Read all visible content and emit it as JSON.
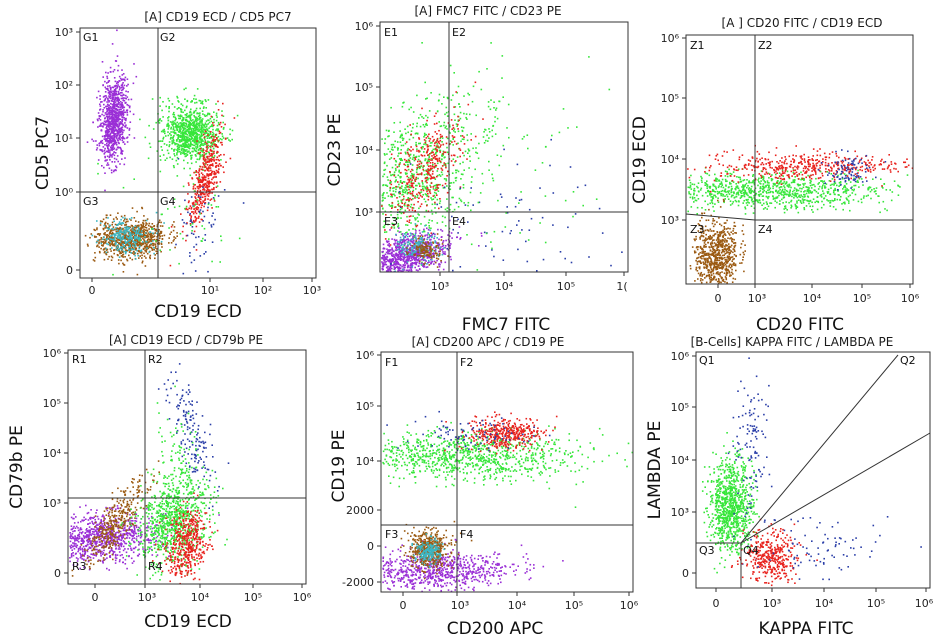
{
  "colors": {
    "purple": "#9a2fd6",
    "green": "#37e63b",
    "red": "#e8231e",
    "blue": "#2b3fa8",
    "brown": "#9b5a12",
    "cyan": "#3cb6c2",
    "gate": "#333333"
  },
  "chart_data": [
    {
      "type": "scatter",
      "title": "[A] CD19 ECD  /  CD5 PC7",
      "xlabel": "CD19 ECD",
      "ylabel": "CD5 PC7",
      "x_ticks": [
        "0",
        "10¹",
        "10²",
        "10³"
      ],
      "y_ticks": [
        "0",
        "10⁰",
        "10¹",
        "10²",
        "10³"
      ],
      "quadrants": [
        "G1",
        "G2",
        "G3",
        "G4"
      ],
      "gate": {
        "x": "10⁰",
        "y": "10⁰"
      },
      "populations": [
        {
          "color": "purple",
          "x": "~0.7",
          "y": "~30",
          "share": "large"
        },
        {
          "color": "green",
          "x": "~3",
          "y": "~12",
          "share": "large"
        },
        {
          "color": "red",
          "x": "~5",
          "y": "~1–3",
          "share": "medium"
        },
        {
          "color": "brown",
          "x": "~0.5",
          "y": "~0",
          "share": "large"
        },
        {
          "color": "cyan",
          "x": "~0.5",
          "y": "~0",
          "share": "small"
        },
        {
          "color": "blue",
          "x": "~5",
          "y": "~0–0.5",
          "share": "small"
        }
      ]
    },
    {
      "type": "scatter",
      "title": "[A] FMC7 FITC  /  CD23 PE",
      "xlabel": "FMC7 FITC",
      "ylabel": "CD23 PE",
      "x_ticks": [
        "10³",
        "10⁴",
        "10⁵",
        "1("
      ],
      "y_ticks": [
        "10³",
        "10⁴",
        "10⁵",
        "10⁶"
      ],
      "quadrants": [
        "E1",
        "E2",
        "E3",
        "E4"
      ],
      "gate": {
        "x": "~1.2×10³",
        "y": "10³"
      },
      "populations": [
        {
          "color": "green",
          "x": "~400",
          "y": "~5×10³",
          "share": "large"
        },
        {
          "color": "red",
          "x": "~600",
          "y": "~8×10³",
          "share": "medium"
        },
        {
          "color": "purple",
          "x": "~200",
          "y": "<10³",
          "share": "large"
        },
        {
          "color": "cyan",
          "x": "~400",
          "y": "<10³",
          "share": "small"
        },
        {
          "color": "brown",
          "x": "~400",
          "y": "<10³",
          "share": "small"
        },
        {
          "color": "blue",
          "x": "~10³–10⁴",
          "y": "scattered",
          "share": "small"
        }
      ]
    },
    {
      "type": "scatter",
      "title": "[A ] CD20 FITC  /  CD19 ECD",
      "xlabel": "CD20 FITC",
      "ylabel": "CD19 ECD",
      "x_ticks": [
        "0",
        "10³",
        "10⁴",
        "10⁵",
        "10⁶"
      ],
      "y_ticks": [
        "10³",
        "10⁴",
        "10⁵",
        "10⁶"
      ],
      "quadrants": [
        "Z1",
        "Z2",
        "Z3",
        "Z4"
      ],
      "gate": {
        "x": "10³",
        "y": "10³"
      },
      "populations": [
        {
          "color": "green",
          "x": "~0–10⁴",
          "y": "~3×10³",
          "share": "large"
        },
        {
          "color": "red",
          "x": "~10³–10⁴",
          "y": "~6×10³",
          "share": "medium"
        },
        {
          "color": "blue",
          "x": "~3×10⁴",
          "y": "~5×10³",
          "share": "small"
        },
        {
          "color": "brown",
          "x": "~0",
          "y": "<10³",
          "share": "large"
        }
      ]
    },
    {
      "type": "scatter",
      "title": "[A] CD19 ECD  /  CD79b PE",
      "xlabel": "CD19 ECD",
      "ylabel": "CD79b PE",
      "x_ticks": [
        "0",
        "10³",
        "10⁴",
        "10⁵",
        "10⁶"
      ],
      "y_ticks": [
        "0",
        "10³",
        "10⁴",
        "10⁵",
        "10⁶"
      ],
      "quadrants": [
        "R1",
        "R2",
        "R3",
        "R4"
      ],
      "gate": {
        "x": "10³",
        "y": "~1.3×10³"
      },
      "populations": [
        {
          "color": "purple",
          "x": "~0",
          "y": "~300",
          "share": "large"
        },
        {
          "color": "brown",
          "x": "~500",
          "y": "~10³",
          "share": "medium"
        },
        {
          "color": "green",
          "x": "~4×10³",
          "y": "~10³",
          "share": "large"
        },
        {
          "color": "red",
          "x": "~6×10³",
          "y": "~200",
          "share": "medium"
        },
        {
          "color": "blue",
          "x": "~6×10³",
          "y": "~10⁴",
          "share": "small"
        }
      ]
    },
    {
      "type": "scatter",
      "title": "[A] CD200 APC  /  CD19 PE",
      "xlabel": "CD200 APC",
      "ylabel": "CD19 PE",
      "x_ticks": [
        "0",
        "10³",
        "10⁴",
        "10⁵",
        "10⁶"
      ],
      "y_ticks": [
        "-2000",
        "0",
        "2000",
        "10⁴",
        "10⁵",
        "10⁶"
      ],
      "quadrants": [
        "F1",
        "F2",
        "F3",
        "F4"
      ],
      "gate": {
        "x": "10³",
        "y": "~4×10³"
      },
      "populations": [
        {
          "color": "green",
          "x": "~0–10⁴",
          "y": "~10⁴",
          "share": "large"
        },
        {
          "color": "red",
          "x": "~4×10³",
          "y": "~2×10⁴",
          "share": "medium"
        },
        {
          "color": "blue",
          "x": "~10³",
          "y": "~2×10⁴",
          "share": "small"
        },
        {
          "color": "purple",
          "x": "~0",
          "y": "~-1000",
          "share": "large"
        },
        {
          "color": "brown",
          "x": "~200",
          "y": "~0",
          "share": "medium"
        },
        {
          "color": "cyan",
          "x": "~200",
          "y": "~0",
          "share": "small"
        }
      ]
    },
    {
      "type": "scatter",
      "title": "[B-Cells] KAPPA FITC  /  LAMBDA PE",
      "xlabel": "KAPPA FITC",
      "ylabel": "LAMBDA PE",
      "x_ticks": [
        "0",
        "10³",
        "10⁴",
        "10⁵",
        "10⁶"
      ],
      "y_ticks": [
        "0",
        "10³",
        "10⁴",
        "10⁵",
        "10⁶"
      ],
      "quadrants": [
        "Q1",
        "Q2",
        "Q3",
        "Q4"
      ],
      "gate": {
        "x": "~300",
        "y": "~100"
      },
      "populations": [
        {
          "color": "green",
          "x": "~100",
          "y": "~10³",
          "share": "large"
        },
        {
          "color": "blue",
          "x": "~10³–10⁴",
          "y": "scattered",
          "share": "small"
        },
        {
          "color": "red",
          "x": "~800",
          "y": "~50",
          "share": "medium"
        }
      ]
    }
  ]
}
